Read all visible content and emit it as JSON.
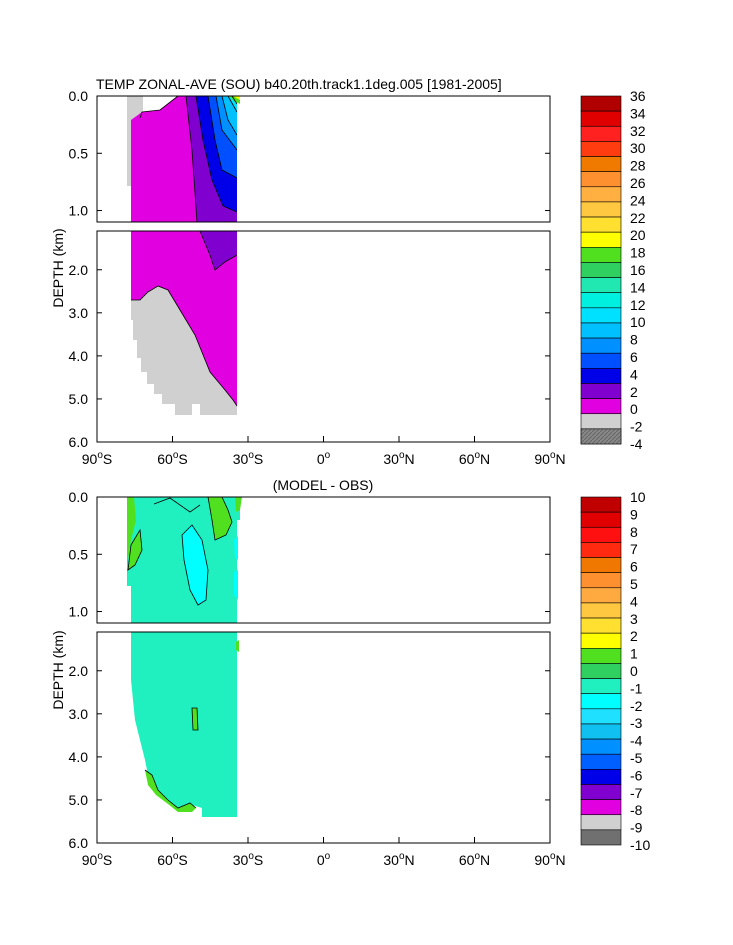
{
  "chart_data": [
    {
      "type": "heatmap",
      "title": "TEMP ZONAL-AVE (SOU) b40.20th.track1.1deg.005 [1981-2005]",
      "ylabel": "DEPTH (km)",
      "x_ticks": [
        "90°S",
        "60°S",
        "30°S",
        "0°",
        "30°N",
        "60°N",
        "90°N"
      ],
      "x_ticks_parts": [
        {
          "num": "90",
          "hemi": "S"
        },
        {
          "num": "60",
          "hemi": "S"
        },
        {
          "num": "30",
          "hemi": "S"
        },
        {
          "num": "0",
          "hemi": ""
        },
        {
          "num": "30",
          "hemi": "N"
        },
        {
          "num": "60",
          "hemi": "N"
        },
        {
          "num": "90",
          "hemi": "N"
        }
      ],
      "y_ticks_top": [
        "0.0",
        "0.5",
        "1.0"
      ],
      "y_ticks_bottom": [
        "2.0",
        "3.0",
        "4.0",
        "5.0",
        "6.0"
      ],
      "xlim": [
        -90,
        90
      ],
      "ylim_top": [
        0,
        1.1
      ],
      "ylim_bottom": [
        1.1,
        6.0
      ],
      "colorbar_labels": [
        "36",
        "34",
        "32",
        "30",
        "28",
        "26",
        "24",
        "22",
        "20",
        "18",
        "16",
        "14",
        "12",
        "10",
        "8",
        "6",
        "4",
        "2",
        "0",
        "-2",
        "-4"
      ],
      "colorbar_colors": [
        "#b00000",
        "#e00000",
        "#ff2020",
        "#ff3c10",
        "#f07a00",
        "#ff9030",
        "#ffb040",
        "#ffc840",
        "#ffe030",
        "#ffff00",
        "#50e020",
        "#30d060",
        "#20e8b0",
        "#00f0e0",
        "#00e0ff",
        "#00c0ff",
        "#0090ff",
        "#0050ff",
        "#0000e8",
        "#8000d0",
        "#e000e0",
        "#d0d0d0",
        "#808080"
      ]
    },
    {
      "type": "heatmap",
      "title": "(MODEL - OBS)",
      "ylabel": "DEPTH (km)",
      "x_ticks": [
        "90°S",
        "60°S",
        "30°S",
        "0°",
        "30°N",
        "60°N",
        "90°N"
      ],
      "y_ticks_top": [
        "0.0",
        "0.5",
        "1.0"
      ],
      "y_ticks_bottom": [
        "2.0",
        "3.0",
        "4.0",
        "5.0",
        "6.0"
      ],
      "xlim": [
        -90,
        90
      ],
      "ylim_top": [
        0,
        1.1
      ],
      "ylim_bottom": [
        1.1,
        6.0
      ],
      "colorbar_labels": [
        "10",
        "9",
        "8",
        "7",
        "6",
        "5",
        "4",
        "3",
        "2",
        "1",
        "0",
        "-1",
        "-2",
        "-3",
        "-4",
        "-5",
        "-6",
        "-7",
        "-8",
        "-9",
        "-10"
      ],
      "colorbar_colors": [
        "#c00000",
        "#e00000",
        "#ff1010",
        "#ff2a10",
        "#f07800",
        "#ff9030",
        "#ffaa40",
        "#ffc840",
        "#ffe030",
        "#ffff00",
        "#50e020",
        "#30d060",
        "#20f0c0",
        "#00ffff",
        "#20e0ff",
        "#10c0f0",
        "#0090ff",
        "#0060ff",
        "#0000e8",
        "#8000d0",
        "#e000e0",
        "#d0d0d0",
        "#707070"
      ]
    }
  ]
}
